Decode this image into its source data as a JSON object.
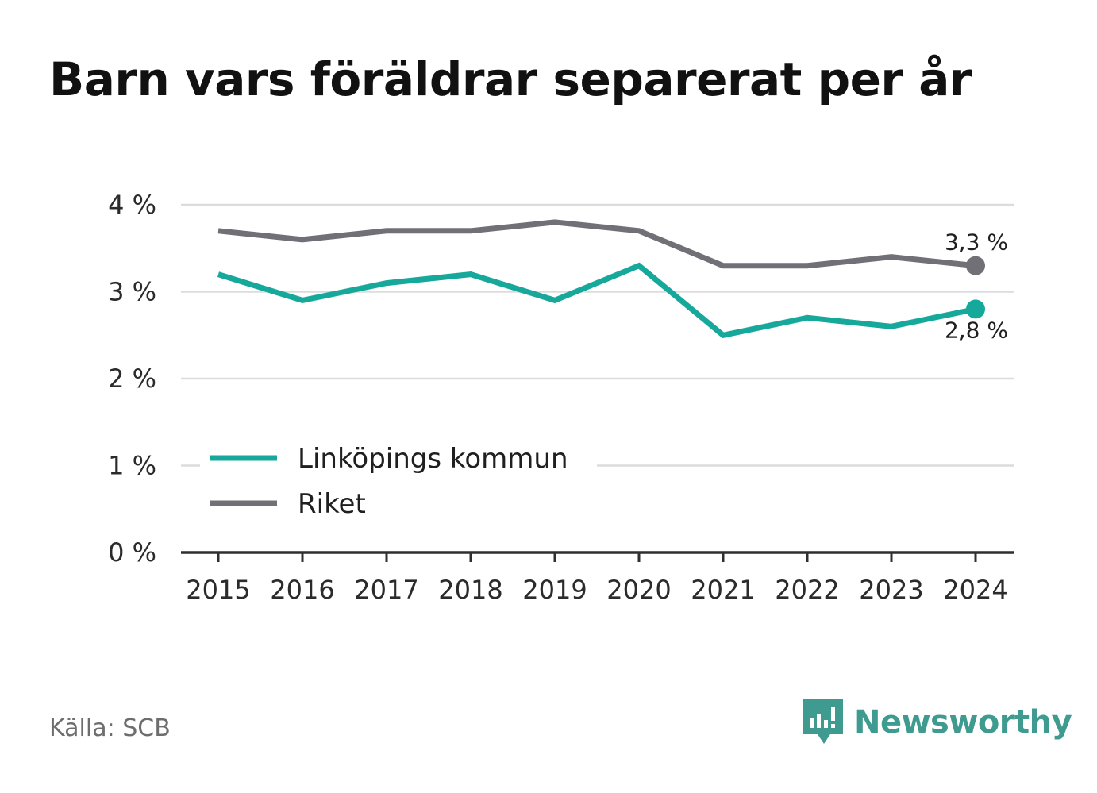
{
  "title": "Barn vars föräldrar separerat per år",
  "source": "Källa: SCB",
  "brand": {
    "name": "Newsworthy",
    "icon": "newsworthy-logo-icon",
    "color": "#3f9a8f"
  },
  "chart_data": {
    "type": "line",
    "title": "Barn vars föräldrar separerat per år",
    "xlabel": "",
    "ylabel": "",
    "x": [
      "2015",
      "2016",
      "2017",
      "2018",
      "2019",
      "2020",
      "2021",
      "2022",
      "2023",
      "2024"
    ],
    "ylim": [
      0,
      4
    ],
    "yticks": [
      {
        "value": 0,
        "label": "0 %"
      },
      {
        "value": 1,
        "label": "1 %"
      },
      {
        "value": 2,
        "label": "2 %"
      },
      {
        "value": 3,
        "label": "3 %"
      },
      {
        "value": 4,
        "label": "4 %"
      }
    ],
    "grid": true,
    "legend_position": "bottom-left",
    "series": [
      {
        "name": "Linköpings kommun",
        "color": "#16a89a",
        "values": [
          3.2,
          2.9,
          3.1,
          3.2,
          2.9,
          3.3,
          2.5,
          2.7,
          2.6,
          2.8
        ],
        "end_label": "2,8 %"
      },
      {
        "name": "Riket",
        "color": "#717077",
        "values": [
          3.7,
          3.6,
          3.7,
          3.7,
          3.8,
          3.7,
          3.3,
          3.3,
          3.4,
          3.3
        ],
        "end_label": "3,3 %"
      }
    ]
  }
}
